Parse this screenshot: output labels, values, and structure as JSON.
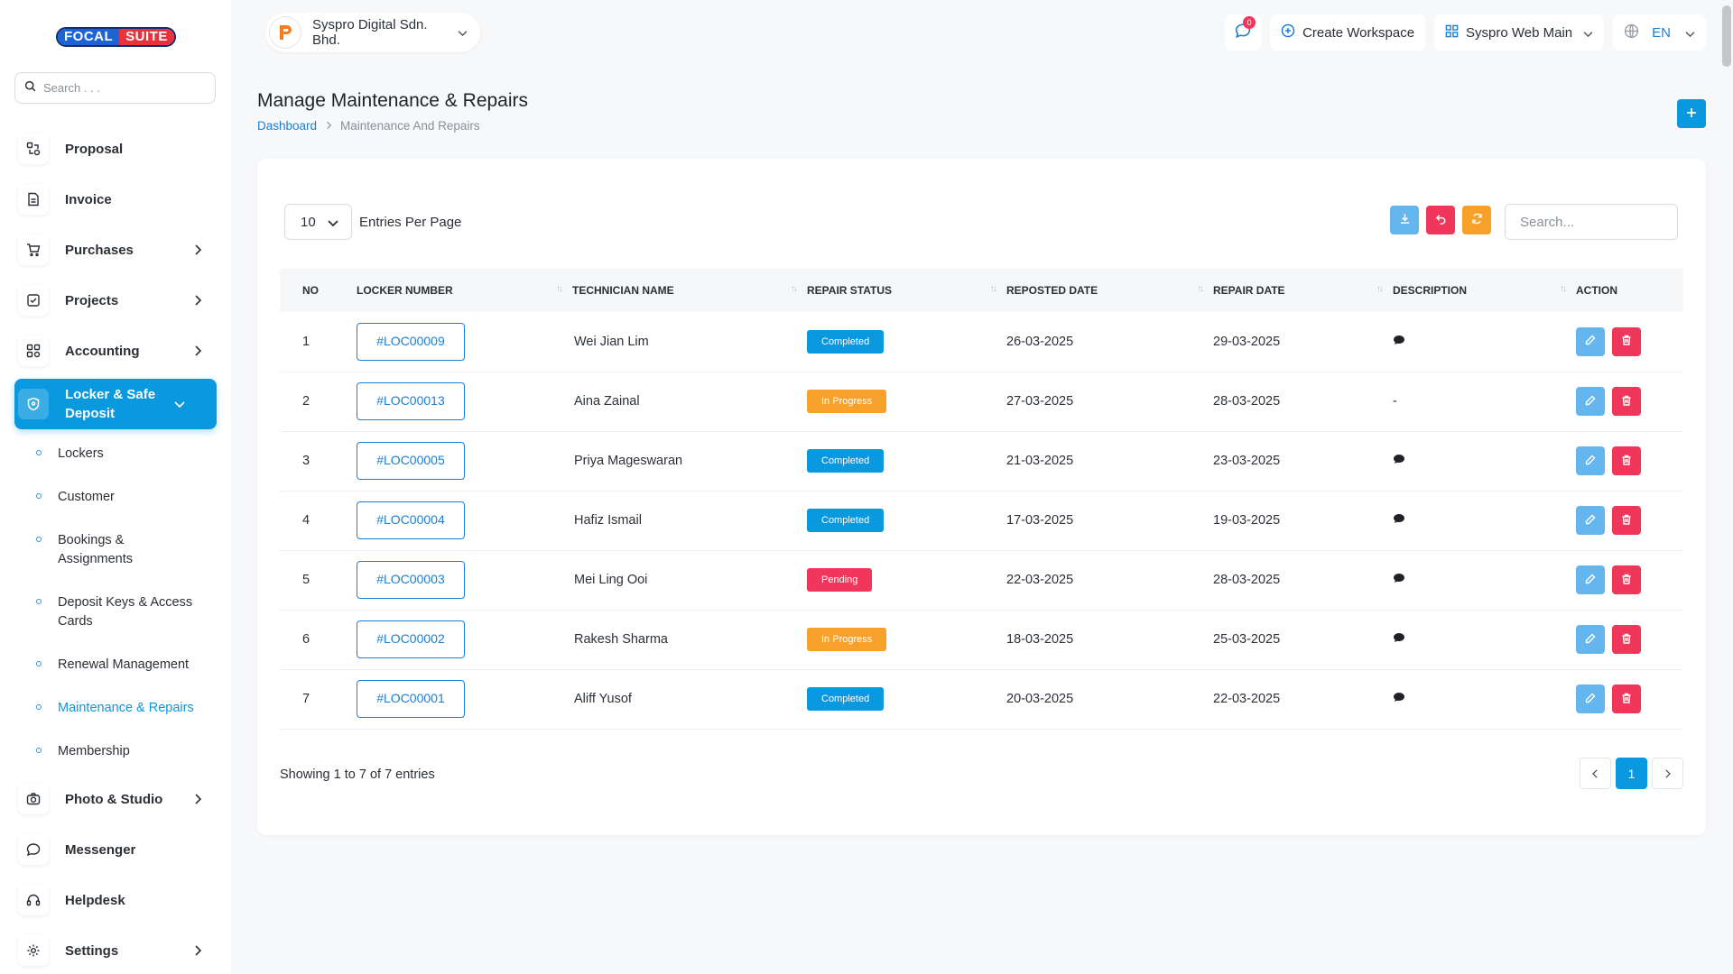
{
  "app": {
    "logo_part1": "FOCAL",
    "logo_part2": "SUITE",
    "colors": {
      "accent": "#0a98df",
      "danger": "#f0365a",
      "warning": "#f7a12a",
      "light_blue": "#65b6ef"
    }
  },
  "sidebar": {
    "search_placeholder": "Search . . .",
    "items": [
      {
        "label": "Proposal",
        "icon": "proposal-icon"
      },
      {
        "label": "Invoice",
        "icon": "invoice-icon"
      },
      {
        "label": "Purchases",
        "icon": "cart-icon",
        "has_chevron": true
      },
      {
        "label": "Projects",
        "icon": "checkbox-icon",
        "has_chevron": true
      },
      {
        "label": "Accounting",
        "icon": "grid-icon",
        "has_chevron": true
      },
      {
        "label": "Locker & Safe Deposit",
        "icon": "shield-icon",
        "has_chevron": true,
        "active": true
      },
      {
        "label": "Photo & Studio",
        "icon": "camera-icon",
        "has_chevron": true
      },
      {
        "label": "Messenger",
        "icon": "chat-icon"
      },
      {
        "label": "Helpdesk",
        "icon": "headset-icon"
      },
      {
        "label": "Settings",
        "icon": "gear-icon",
        "has_chevron": true
      }
    ],
    "subitems": [
      {
        "label": "Lockers"
      },
      {
        "label": "Customer"
      },
      {
        "label": "Bookings & Assignments"
      },
      {
        "label": "Deposit Keys & Access Cards"
      },
      {
        "label": "Renewal Management"
      },
      {
        "label": "Maintenance & Repairs",
        "current": true
      },
      {
        "label": "Membership"
      }
    ]
  },
  "topbar": {
    "company": "Syspro Digital Sdn. Bhd.",
    "notifications_count": "0",
    "create_workspace": "Create Workspace",
    "workspace": "Syspro Web Main",
    "language": "EN"
  },
  "header": {
    "title": "Manage Maintenance & Repairs",
    "breadcrumb_home": "Dashboard",
    "breadcrumb_current": "Maintenance And Repairs"
  },
  "table": {
    "per_page": "10",
    "per_page_label": "Entries Per Page",
    "search_placeholder": "Search...",
    "columns": [
      "NO",
      "LOCKER NUMBER",
      "TECHNICIAN NAME",
      "REPAIR STATUS",
      "REPOSTED DATE",
      "REPAIR DATE",
      "DESCRIPTION",
      "ACTION"
    ],
    "rows": [
      {
        "no": "1",
        "locker": "#LOC00009",
        "technician": "Wei Jian Lim",
        "status": "Completed",
        "reported": "26-03-2025",
        "repair": "29-03-2025",
        "description": "comment"
      },
      {
        "no": "2",
        "locker": "#LOC00013",
        "technician": "Aina Zainal",
        "status": "In Progress",
        "reported": "27-03-2025",
        "repair": "28-03-2025",
        "description": "-"
      },
      {
        "no": "3",
        "locker": "#LOC00005",
        "technician": "Priya Mageswaran",
        "status": "Completed",
        "reported": "21-03-2025",
        "repair": "23-03-2025",
        "description": "comment"
      },
      {
        "no": "4",
        "locker": "#LOC00004",
        "technician": "Hafiz Ismail",
        "status": "Completed",
        "reported": "17-03-2025",
        "repair": "19-03-2025",
        "description": "comment"
      },
      {
        "no": "5",
        "locker": "#LOC00003",
        "technician": "Mei Ling Ooi",
        "status": "Pending",
        "reported": "22-03-2025",
        "repair": "28-03-2025",
        "description": "comment"
      },
      {
        "no": "6",
        "locker": "#LOC00002",
        "technician": "Rakesh Sharma",
        "status": "In Progress",
        "reported": "18-03-2025",
        "repair": "25-03-2025",
        "description": "comment"
      },
      {
        "no": "7",
        "locker": "#LOC00001",
        "technician": "Aliff Yusof",
        "status": "Completed",
        "reported": "20-03-2025",
        "repair": "22-03-2025",
        "description": "comment"
      }
    ],
    "footer": "Showing 1 to 7 of 7 entries",
    "current_page": "1"
  }
}
